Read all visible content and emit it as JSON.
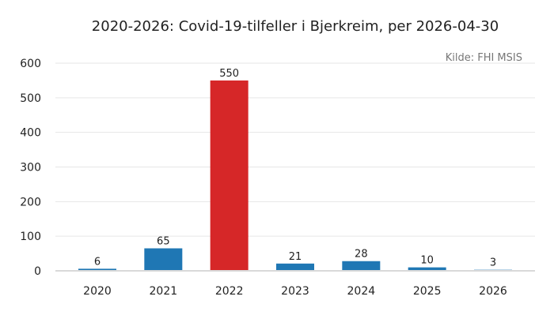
{
  "chart_data": {
    "type": "bar",
    "title": "2020-2026: Covid-19-tilfeller i Bjerkreim, per 2026-04-30",
    "source": "Kilde: FHI MSIS",
    "xlabel": "",
    "ylabel": "",
    "categories": [
      "2020",
      "2021",
      "2022",
      "2023",
      "2024",
      "2025",
      "2026"
    ],
    "values": [
      6,
      65,
      550,
      21,
      28,
      10,
      3
    ],
    "data_labels": [
      "6",
      "65",
      "550",
      "21",
      "28",
      "10",
      "3"
    ],
    "ylim": [
      0,
      600
    ],
    "yticks": [
      0,
      100,
      200,
      300,
      400,
      500,
      600
    ],
    "ytick_labels": [
      "0",
      "100",
      "200",
      "300",
      "400",
      "500",
      "600"
    ],
    "grid": true,
    "colors": {
      "default": "#1f77b4",
      "highlight": "#d62728"
    },
    "highlight_category": "2022"
  }
}
